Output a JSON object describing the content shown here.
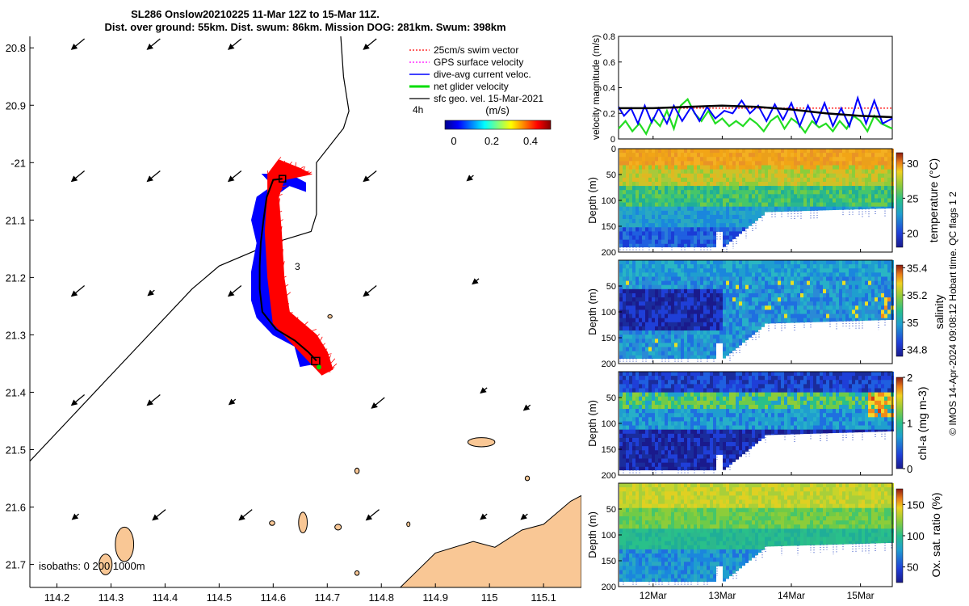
{
  "title": {
    "line1": "SL286 Onslow20210225 11-Mar 12Z to 15-Mar 11Z.",
    "line2": "Dist. over ground: 55km. Dist. swum: 86km. Mission DOG: 281km. Swum: 398km"
  },
  "credit": "© IMOS 14-Apr-2024 09:08:12 Hobart time. QC flags 1  2",
  "colors": {
    "swim_vector": "#ff0000",
    "gps_velocity": "#ff00ff",
    "current": "#0000ff",
    "net_velocity": "#00dd00",
    "geostrophic": "#000000",
    "land": "#f9c795"
  },
  "chart_data": [
    {
      "type": "map",
      "name": "track-map",
      "xlim": [
        114.15,
        115.17
      ],
      "ylim": [
        -21.74,
        -20.78
      ],
      "xticks": [
        114.2,
        114.3,
        114.4,
        114.5,
        114.6,
        114.7,
        114.8,
        114.9,
        115,
        115.1
      ],
      "xtick_labels": [
        "114.2",
        "114.3",
        "114.4",
        "114.5",
        "114.6",
        "114.7",
        "114.8",
        "114.9",
        "115",
        "115.1"
      ],
      "yticks": [
        -20.8,
        -20.9,
        -21,
        -21.1,
        -21.2,
        -21.3,
        -21.4,
        -21.5,
        -21.6,
        -21.7
      ],
      "ytick_labels": [
        "20.8",
        "20.9",
        "-21",
        "21.1",
        "21.2",
        "21.3",
        "21.4",
        "21.5",
        "21.6",
        "21.7"
      ],
      "legend": {
        "placement": "top-right",
        "entries": [
          "25cm/s swim vector",
          "GPS surface velocity",
          "dive-avg current veloc.",
          "net glider velocity",
          "sfc geo. vel. 15-Mar-2021"
        ],
        "time_label": "4h",
        "colorbar_label": "(m/s)",
        "colorbar_ticks": [
          "0",
          "0.2",
          "0.4"
        ]
      },
      "isobaths_label": "isobaths: 0   200  1000m",
      "track_labels": [
        "3"
      ],
      "glider_track": [
        [
          114.617,
          -21.028
        ],
        [
          114.6,
          -21.03
        ],
        [
          114.588,
          -21.06
        ],
        [
          114.582,
          -21.1
        ],
        [
          114.577,
          -21.14
        ],
        [
          114.575,
          -21.18
        ],
        [
          114.575,
          -21.22
        ],
        [
          114.58,
          -21.26
        ],
        [
          114.605,
          -21.29
        ],
        [
          114.64,
          -21.31
        ],
        [
          114.665,
          -21.33
        ],
        [
          114.68,
          -21.345
        ]
      ],
      "current_patch": [
        [
          114.58,
          -21.02
        ],
        [
          114.6,
          -21.04
        ],
        [
          114.57,
          -21.06
        ],
        [
          114.56,
          -21.1
        ],
        [
          114.57,
          -21.14
        ],
        [
          114.56,
          -21.19
        ],
        [
          114.56,
          -21.24
        ],
        [
          114.57,
          -21.27
        ],
        [
          114.6,
          -21.3
        ],
        [
          114.64,
          -21.32
        ],
        [
          114.65,
          -21.355
        ],
        [
          114.68,
          -21.35
        ],
        [
          114.685,
          -21.33
        ],
        [
          114.65,
          -21.3
        ],
        [
          114.61,
          -21.28
        ],
        [
          114.595,
          -21.23
        ],
        [
          114.6,
          -21.17
        ],
        [
          114.595,
          -21.1
        ],
        [
          114.6,
          -21.06
        ],
        [
          114.63,
          -21.04
        ],
        [
          114.66,
          -21.05
        ],
        [
          114.66,
          -21.035
        ],
        [
          114.63,
          -21.02
        ]
      ],
      "swim_patch": [
        [
          114.61,
          -20.995
        ],
        [
          114.65,
          -21.01
        ],
        [
          114.67,
          -21.02
        ],
        [
          114.62,
          -21.03
        ],
        [
          114.61,
          -21.06
        ],
        [
          114.615,
          -21.12
        ],
        [
          114.62,
          -21.2
        ],
        [
          114.63,
          -21.26
        ],
        [
          114.68,
          -21.3
        ],
        [
          114.7,
          -21.33
        ],
        [
          114.71,
          -21.36
        ],
        [
          114.69,
          -21.37
        ],
        [
          114.66,
          -21.34
        ],
        [
          114.63,
          -21.31
        ],
        [
          114.6,
          -21.28
        ],
        [
          114.59,
          -21.2
        ],
        [
          114.585,
          -21.12
        ],
        [
          114.59,
          -21.05
        ],
        [
          114.59,
          -21.02
        ]
      ],
      "coastline": [
        [
          114.15,
          -21.52
        ],
        [
          114.23,
          -21.44
        ],
        [
          114.3,
          -21.37
        ],
        [
          114.36,
          -21.31
        ],
        [
          114.45,
          -21.22
        ],
        [
          114.5,
          -21.18
        ],
        [
          114.6,
          -21.14
        ],
        [
          114.67,
          -21.12
        ],
        [
          114.68,
          -21.09
        ],
        [
          114.68,
          -21.0
        ],
        [
          114.73,
          -20.94
        ],
        [
          114.74,
          -20.91
        ],
        [
          114.73,
          -20.85
        ],
        [
          114.725,
          -20.78
        ]
      ],
      "mainland": [
        [
          114.835,
          -21.74
        ],
        [
          114.9,
          -21.68
        ],
        [
          114.97,
          -21.66
        ],
        [
          115.01,
          -21.67
        ],
        [
          115.06,
          -21.64
        ],
        [
          115.1,
          -21.63
        ],
        [
          115.15,
          -21.59
        ],
        [
          115.17,
          -21.58
        ],
        [
          115.17,
          -21.74
        ]
      ],
      "islands": [
        {
          "center": [
            114.985,
            -21.487
          ],
          "rx": 0.025,
          "ry": 0.008
        },
        {
          "center": [
            114.755,
            -21.537
          ],
          "rx": 0.004,
          "ry": 0.005
        },
        {
          "center": [
            114.655,
            -21.627
          ],
          "rx": 0.008,
          "ry": 0.018
        },
        {
          "center": [
            114.325,
            -21.665
          ],
          "rx": 0.017,
          "ry": 0.03
        },
        {
          "center": [
            114.29,
            -21.7
          ],
          "rx": 0.012,
          "ry": 0.018
        },
        {
          "center": [
            114.72,
            -21.635
          ],
          "rx": 0.006,
          "ry": 0.005
        },
        {
          "center": [
            114.755,
            -21.715
          ],
          "rx": 0.004,
          "ry": 0.004
        },
        {
          "center": [
            114.598,
            -21.628
          ],
          "rx": 0.005,
          "ry": 0.004
        },
        {
          "center": [
            115.07,
            -21.55
          ],
          "rx": 0.004,
          "ry": 0.004
        },
        {
          "center": [
            114.85,
            -21.63
          ],
          "rx": 0.003,
          "ry": 0.004
        },
        {
          "center": [
            114.705,
            -21.268
          ],
          "rx": 0.004,
          "ry": 0.003
        }
      ],
      "geo_vectors": [
        [
          114.23,
          -20.8
        ],
        [
          114.37,
          -20.8
        ],
        [
          114.52,
          -20.8
        ],
        [
          114.77,
          -20.8
        ],
        [
          114.23,
          -21.03
        ],
        [
          114.37,
          -21.03
        ],
        [
          114.52,
          -21.03
        ],
        [
          114.77,
          -21.03
        ],
        [
          114.96,
          -21.03
        ],
        [
          114.23,
          -21.23
        ],
        [
          114.37,
          -21.23
        ],
        [
          114.52,
          -21.23
        ],
        [
          114.77,
          -21.23
        ],
        [
          114.97,
          -21.21
        ],
        [
          114.23,
          -21.42
        ],
        [
          114.37,
          -21.42
        ],
        [
          114.52,
          -21.42
        ],
        [
          114.785,
          -21.425
        ],
        [
          114.985,
          -21.4
        ],
        [
          115.065,
          -21.43
        ],
        [
          114.23,
          -21.62
        ],
        [
          114.38,
          -21.62
        ],
        [
          114.54,
          -21.62
        ],
        [
          114.775,
          -21.62
        ],
        [
          114.985,
          -21.62
        ],
        [
          115.06,
          -21.62
        ]
      ]
    },
    {
      "type": "line",
      "name": "velocity-magnitude",
      "ylabel": "velocity magnitude (m/s)",
      "ylim": [
        0,
        0.8
      ],
      "yticks": [
        0,
        0.2,
        0.4,
        0.6,
        0.8
      ],
      "ytick_labels": [
        "0",
        "0.2",
        "0.4",
        "0.6",
        "0.8"
      ],
      "xlim": [
        11.5,
        15.46
      ],
      "series": [
        {
          "name": "25cm/s swim vector",
          "style": "dashed",
          "x": [
            11.5,
            15.46
          ],
          "y": [
            0.24,
            0.24
          ]
        },
        {
          "name": "dive-avg current veloc.",
          "x": [
            11.5,
            11.58,
            11.68,
            11.78,
            11.88,
            11.98,
            12.08,
            12.2,
            12.3,
            12.42,
            12.55,
            12.67,
            12.78,
            12.9,
            13.03,
            13.15,
            13.28,
            13.4,
            13.52,
            13.64,
            13.76,
            13.88,
            14.0,
            14.12,
            14.24,
            14.36,
            14.48,
            14.6,
            14.72,
            14.84,
            14.96,
            15.08,
            15.2,
            15.32,
            15.46
          ],
          "y": [
            0.25,
            0.18,
            0.24,
            0.12,
            0.26,
            0.13,
            0.24,
            0.12,
            0.26,
            0.14,
            0.25,
            0.14,
            0.25,
            0.16,
            0.22,
            0.2,
            0.3,
            0.2,
            0.26,
            0.14,
            0.27,
            0.15,
            0.28,
            0.1,
            0.26,
            0.12,
            0.28,
            0.1,
            0.24,
            0.1,
            0.32,
            0.12,
            0.3,
            0.12,
            0.16
          ]
        },
        {
          "name": "net glider velocity",
          "x": [
            11.5,
            11.6,
            11.7,
            11.8,
            11.9,
            12.0,
            12.1,
            12.2,
            12.3,
            12.4,
            12.5,
            12.6,
            12.7,
            12.8,
            12.9,
            13.0,
            13.1,
            13.2,
            13.3,
            13.4,
            13.5,
            13.6,
            13.7,
            13.8,
            13.9,
            14.0,
            14.1,
            14.2,
            14.3,
            14.4,
            14.5,
            14.6,
            14.7,
            14.8,
            14.9,
            15.0,
            15.1,
            15.2,
            15.3,
            15.46
          ],
          "y": [
            0.08,
            0.14,
            0.06,
            0.12,
            0.04,
            0.16,
            0.1,
            0.22,
            0.08,
            0.26,
            0.31,
            0.2,
            0.14,
            0.22,
            0.12,
            0.16,
            0.1,
            0.14,
            0.1,
            0.16,
            0.12,
            0.06,
            0.14,
            0.18,
            0.08,
            0.16,
            0.12,
            0.05,
            0.14,
            0.09,
            0.12,
            0.06,
            0.14,
            0.08,
            0.18,
            0.14,
            0.06,
            0.18,
            0.12,
            0.08
          ]
        },
        {
          "name": "sfc geo. vel. 15-Mar-2021",
          "x": [
            11.5,
            12.0,
            12.5,
            13.0,
            13.5,
            14.0,
            14.5,
            15.0,
            15.46
          ],
          "y": [
            0.24,
            0.24,
            0.25,
            0.26,
            0.25,
            0.23,
            0.2,
            0.18,
            0.17
          ]
        }
      ]
    },
    {
      "type": "heatmap",
      "name": "temperature-section",
      "variable": "temperature",
      "ylabel": "Depth (m)",
      "yticks": [
        0,
        50,
        100,
        150,
        200
      ],
      "ytick_labels": [
        "0",
        "50",
        "100",
        "150",
        "200"
      ],
      "colorbar_label": "temperature (°C)",
      "colorbar_ticks": [
        "20",
        "25",
        "30"
      ],
      "clim": [
        18,
        31.5
      ]
    },
    {
      "type": "heatmap",
      "name": "salinity-section",
      "variable": "salinity",
      "ylabel": "Depth (m)",
      "yticks": [
        50,
        100,
        150,
        200
      ],
      "ytick_labels": [
        "50",
        "100",
        "150",
        "200"
      ],
      "colorbar_label": "salinity",
      "colorbar_ticks": [
        "34.8",
        "35",
        "35.2",
        "35.4"
      ],
      "clim": [
        34.75,
        35.42
      ]
    },
    {
      "type": "heatmap",
      "name": "chla-section",
      "variable": "chl-a",
      "ylabel": "Depth (m)",
      "yticks": [
        50,
        100,
        150,
        200
      ],
      "ytick_labels": [
        "50",
        "100",
        "150",
        "200"
      ],
      "colorbar_label": "chl-a (mg m-3)",
      "colorbar_ticks": [
        "0",
        "1",
        "2"
      ],
      "clim": [
        0,
        2
      ]
    },
    {
      "type": "heatmap",
      "name": "oxygen-section",
      "variable": "oxygen saturation",
      "ylabel": "Depth (m)",
      "yticks": [
        50,
        100,
        150,
        200
      ],
      "ytick_labels": [
        "50",
        "100",
        "150",
        "200"
      ],
      "colorbar_label": "Ox. sat. ratio (%)",
      "colorbar_ticks": [
        "50",
        "100",
        "150"
      ],
      "clim": [
        25,
        175
      ],
      "time_axis": {
        "ticks": [
          12,
          13,
          14,
          15
        ],
        "labels": [
          "12Mar",
          "13Mar",
          "14Mar",
          "15Mar"
        ]
      }
    }
  ]
}
